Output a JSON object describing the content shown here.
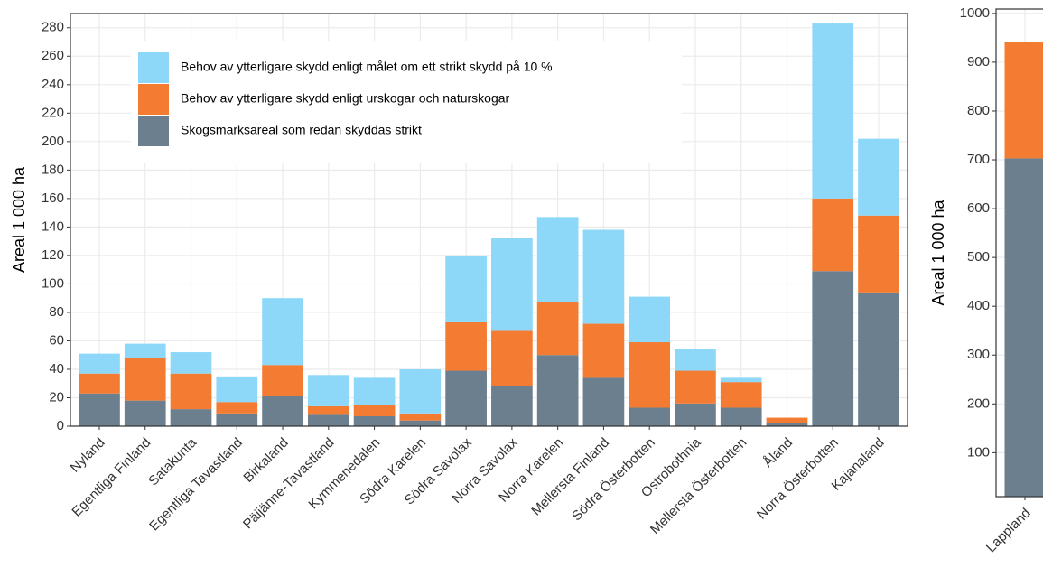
{
  "chart_data": [
    {
      "type": "stacked_bar",
      "y_label": "Areal 1 000 ha",
      "categories": [
        "Nyland",
        "Egentliga Finland",
        "Satakunta",
        "Egentliga Tavastland",
        "Birkaland",
        "Päijänne-Tavastland",
        "Kymmenedalen",
        "Södra Karelen",
        "Södra Savolax",
        "Norra Savolax",
        "Norra Karelen",
        "Mellersta Finland",
        "Södra Österbotten",
        "Ostrobothnia",
        "Mellersta Österbotten",
        "Åland",
        "Norra Österbotten",
        "Kajanaland"
      ],
      "series": [
        {
          "name": "Behov av ytterligare skydd enligt målet om ett strikt skydd på 10 %",
          "color": "#8dd8f8",
          "values": [
            14,
            10,
            15,
            18,
            47,
            22,
            19,
            31,
            47,
            65,
            60,
            66,
            32,
            15,
            3,
            0,
            123,
            54
          ]
        },
        {
          "name": "Behov av ytterligare skydd enligt urskogar och naturskogar",
          "color": "#f47b32",
          "values": [
            14,
            30,
            25,
            8,
            22,
            6,
            8,
            5,
            34,
            39,
            37,
            38,
            46,
            23,
            18,
            4,
            51,
            54
          ]
        },
        {
          "name": "Skogsmarksareal som redan skyddas strikt",
          "color": "#6b7f8f",
          "values": [
            23,
            18,
            12,
            9,
            21,
            8,
            7,
            4,
            39,
            28,
            50,
            34,
            13,
            16,
            13,
            2,
            109,
            94
          ]
        }
      ],
      "ylim": [
        0,
        290
      ],
      "yticks": [
        0,
        20,
        40,
        60,
        80,
        100,
        120,
        140,
        160,
        180,
        200,
        220,
        240,
        260,
        280
      ],
      "grid": true
    },
    {
      "type": "stacked_bar",
      "y_label": "Areal 1 000 ha",
      "categories": [
        "Lappland"
      ],
      "series": [
        {
          "color": "#f47b32",
          "values": [
            239
          ]
        },
        {
          "color": "#6b7f8f",
          "values": [
            703
          ]
        }
      ],
      "ylim": [
        10,
        1009
      ],
      "yticks": [
        100,
        200,
        300,
        400,
        500,
        600,
        700,
        800,
        900,
        1000
      ],
      "grid": true
    }
  ]
}
